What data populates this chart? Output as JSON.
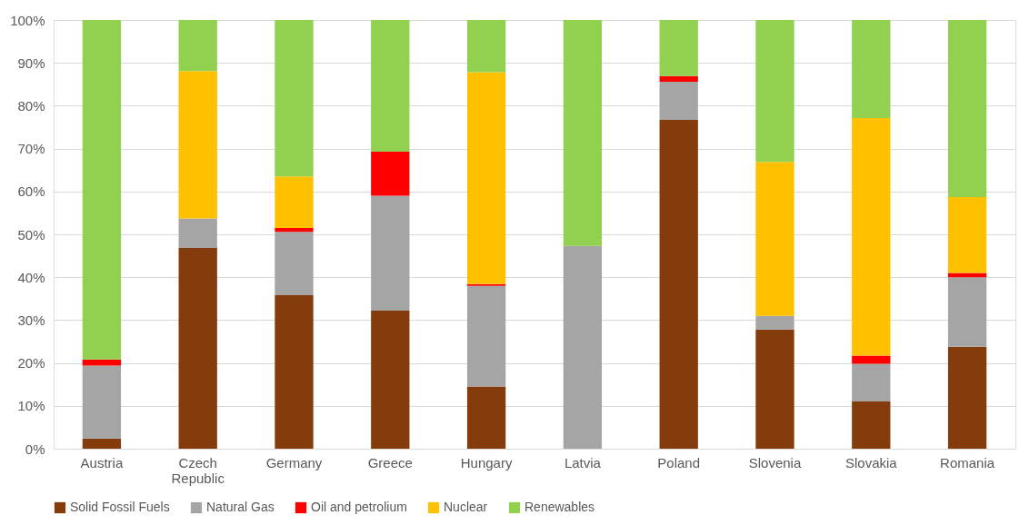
{
  "chart_data": {
    "type": "bar",
    "stacked": true,
    "categories": [
      "Austria",
      "Czech Republic",
      "Germany",
      "Greece",
      "Hungary",
      "Latvia",
      "Poland",
      "Slovenia",
      "Slovakia",
      "Romania"
    ],
    "series": [
      {
        "name": "Solid Fossil Fuels",
        "color": "#843c0c",
        "values": [
          2.4,
          46.8,
          35.8,
          32.2,
          14.5,
          0,
          76.7,
          27.8,
          11,
          23.8
        ]
      },
      {
        "name": "Natural Gas",
        "color": "#a5a5a5",
        "values": [
          17,
          6.9,
          14.8,
          26.8,
          23.5,
          47.3,
          8.9,
          3.2,
          8.8,
          16.2
        ]
      },
      {
        "name": "Oil and petrolium",
        "color": "#ff0000",
        "values": [
          1.4,
          0,
          0.9,
          10.3,
          0.4,
          0,
          1.3,
          0,
          1.9,
          1
        ]
      },
      {
        "name": "Nuclear",
        "color": "#ffc000",
        "values": [
          0,
          34.4,
          12,
          0,
          49.4,
          0,
          0,
          35.9,
          55.4,
          17.7
        ]
      },
      {
        "name": "Renewables",
        "color": "#92d050",
        "values": [
          79.2,
          11.9,
          36.5,
          30.7,
          12.2,
          52.7,
          13.1,
          33.1,
          22.9,
          41.3
        ]
      }
    ],
    "ylim": [
      0,
      100
    ],
    "yticks": [
      {
        "value": 0,
        "label": "0%"
      },
      {
        "value": 10,
        "label": "10%"
      },
      {
        "value": 20,
        "label": "20%"
      },
      {
        "value": 30,
        "label": "30%"
      },
      {
        "value": 40,
        "label": "40%"
      },
      {
        "value": 50,
        "label": "50%"
      },
      {
        "value": 60,
        "label": "60%"
      },
      {
        "value": 70,
        "label": "70%"
      },
      {
        "value": 80,
        "label": "80%"
      },
      {
        "value": 90,
        "label": "90%"
      },
      {
        "value": 100,
        "label": "100%"
      }
    ],
    "grid": "y",
    "legend": "bottom"
  }
}
